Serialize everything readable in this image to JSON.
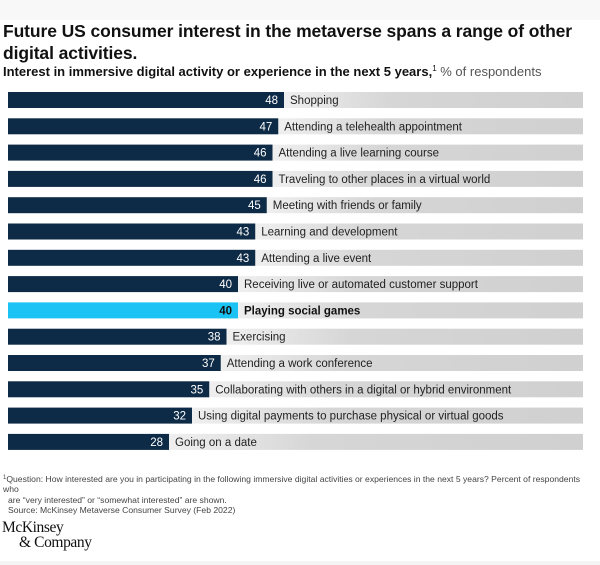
{
  "header": {
    "title": "Future US consumer interest in the metaverse spans a range of other digital activities.",
    "subtitle_bold": "Interest in immersive digital activity or experience in the next 5 years,",
    "subtitle_sup": "1",
    "subtitle_unit": "% of respondents"
  },
  "chart_data": {
    "type": "bar",
    "orientation": "horizontal",
    "title": "Future US consumer interest in the metaverse spans a range of other digital activities.",
    "subtitle": "Interest in immersive digital activity or experience in the next 5 years, % of respondents",
    "xlabel": "",
    "ylabel": "",
    "xlim": [
      0,
      100
    ],
    "grid": false,
    "legend": "none",
    "categories": [
      "Shopping",
      "Attending a telehealth appointment",
      "Attending a live learning course",
      "Traveling to other places in a virtual world",
      "Meeting with friends or family",
      "Learning and development",
      "Attending a live event",
      "Receiving live or automated customer support",
      "Playing social games",
      "Exercising",
      "Attending a work conference",
      "Collaborating with others in a digital or hybrid environment",
      "Using digital payments to purchase physical or virtual goods",
      "Going on a date"
    ],
    "values": [
      48,
      47,
      46,
      46,
      45,
      43,
      43,
      40,
      40,
      38,
      37,
      35,
      32,
      28
    ],
    "highlighted": "Playing social games",
    "colors": {
      "bar": "#0d2a46",
      "highlight": "#1bc3f4",
      "track_light": "#efefef",
      "track_dark": "#d1d1d1",
      "value_text": "#ffffff",
      "highlight_value_text": "#111111",
      "label_text": "#222222"
    }
  },
  "footnote": {
    "marker": "1",
    "question": "Question: How interested are you in participating in the following immersive digital activities or experiences in the next 5 years? Percent of respondents who",
    "question_cont": "are “very interested” or “somewhat interested” are shown.",
    "source": "Source: McKinsey Metaverse Consumer Survey (Feb 2022)"
  },
  "logo": {
    "line1": "McKinsey",
    "line2": "& Company"
  }
}
